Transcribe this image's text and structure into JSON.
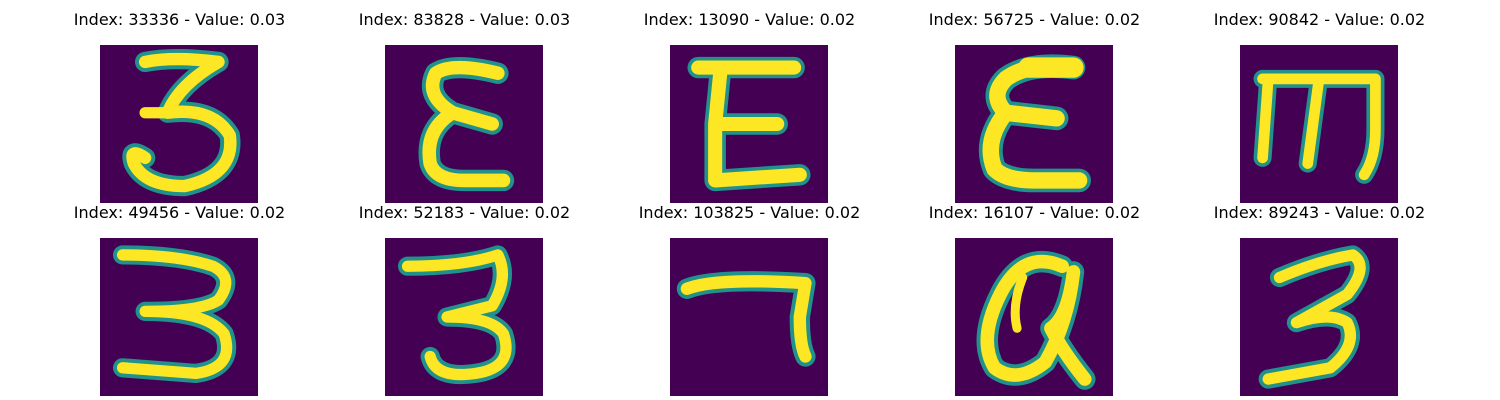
{
  "palette": {
    "background": "#440154",
    "edge": "#21918c",
    "stroke": "#fde725"
  },
  "panels": [
    {
      "title": "Index: 33336 - Value: 0.03",
      "glyph": "three-with-hook"
    },
    {
      "title": "Index: 83828 - Value: 0.03",
      "glyph": "epsilon"
    },
    {
      "title": "Index: 13090 - Value: 0.02",
      "glyph": "E-shape"
    },
    {
      "title": "Index: 56725 - Value: 0.02",
      "glyph": "epsilon-bold"
    },
    {
      "title": "Index: 90842 - Value: 0.02",
      "glyph": "rotated-m"
    },
    {
      "title": "Index: 49456 - Value: 0.02",
      "glyph": "three-wide"
    },
    {
      "title": "Index: 52183 - Value: 0.02",
      "glyph": "three"
    },
    {
      "title": "Index: 103825 - Value: 0.02",
      "glyph": "seven-like"
    },
    {
      "title": "Index: 16107 - Value: 0.02",
      "glyph": "a-like"
    },
    {
      "title": "Index: 89243 - Value: 0.02",
      "glyph": "three-slanted"
    }
  ]
}
